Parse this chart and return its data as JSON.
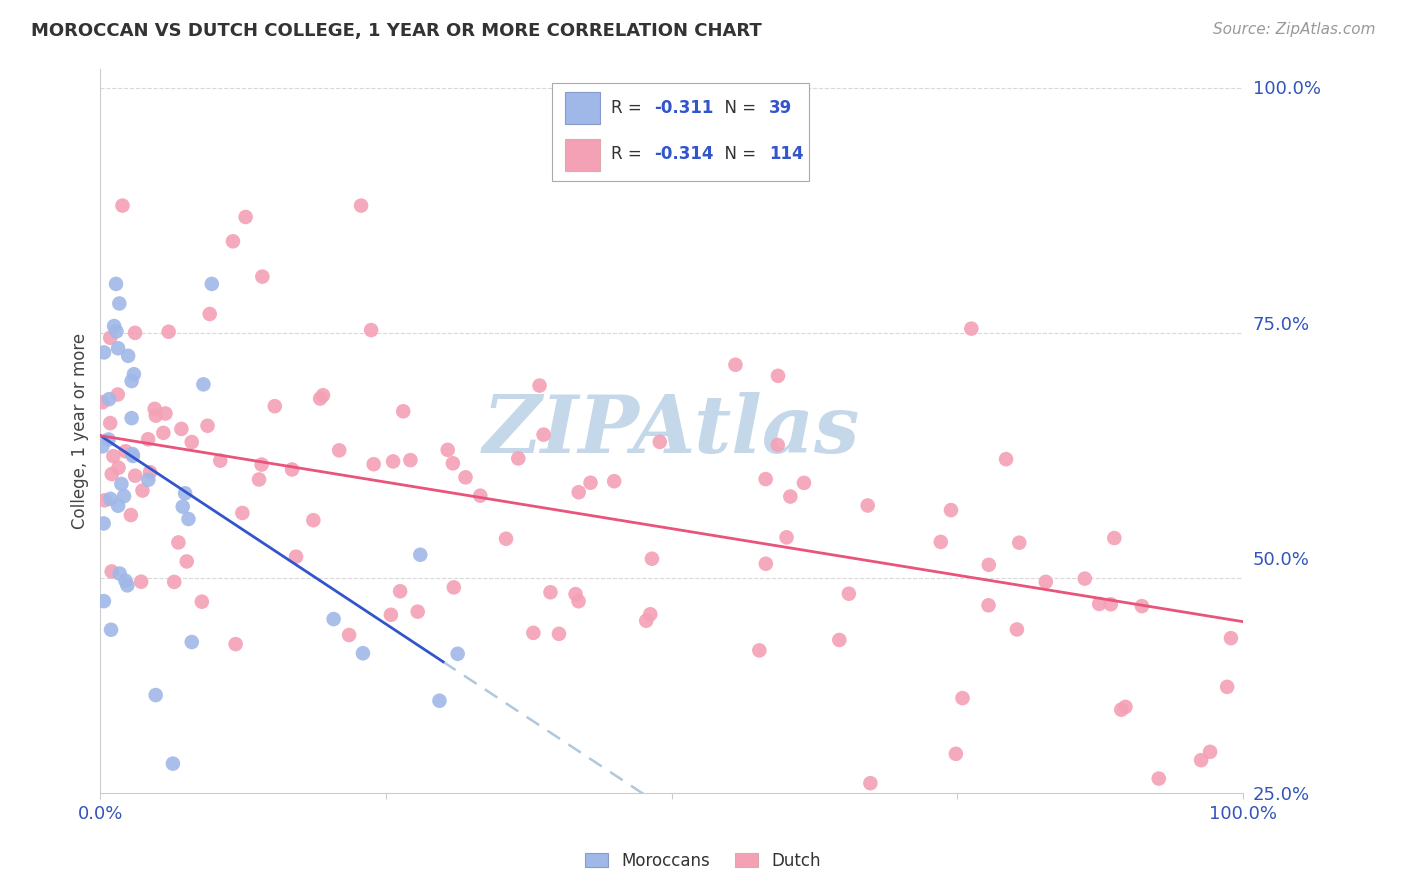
{
  "title": "MOROCCAN VS DUTCH COLLEGE, 1 YEAR OR MORE CORRELATION CHART",
  "source": "Source: ZipAtlas.com",
  "ylabel": "College, 1 year or more",
  "moroccan_R": -0.311,
  "moroccan_N": 39,
  "dutch_R": -0.314,
  "dutch_N": 114,
  "moroccan_color": "#a0b8e8",
  "dutch_color": "#f4a0b5",
  "moroccan_line_color": "#3355cc",
  "dutch_line_color": "#e8547a",
  "dashed_line_color": "#b0c8dd",
  "watermark": "ZIPAtlas",
  "watermark_color": "#c5d8ea",
  "background_color": "#ffffff",
  "grid_color": "#d8d8d8",
  "xlim": [
    0.0,
    1.0
  ],
  "ylim": [
    0.28,
    1.02
  ],
  "right_yticks": [
    0.25,
    0.5,
    0.75,
    1.0
  ],
  "right_yticklabels": [
    "25.0%",
    "50.0%",
    "75.0%",
    "100.0%"
  ],
  "title_fontsize": 13,
  "source_fontsize": 11,
  "axis_label_fontsize": 12,
  "tick_fontsize": 13
}
